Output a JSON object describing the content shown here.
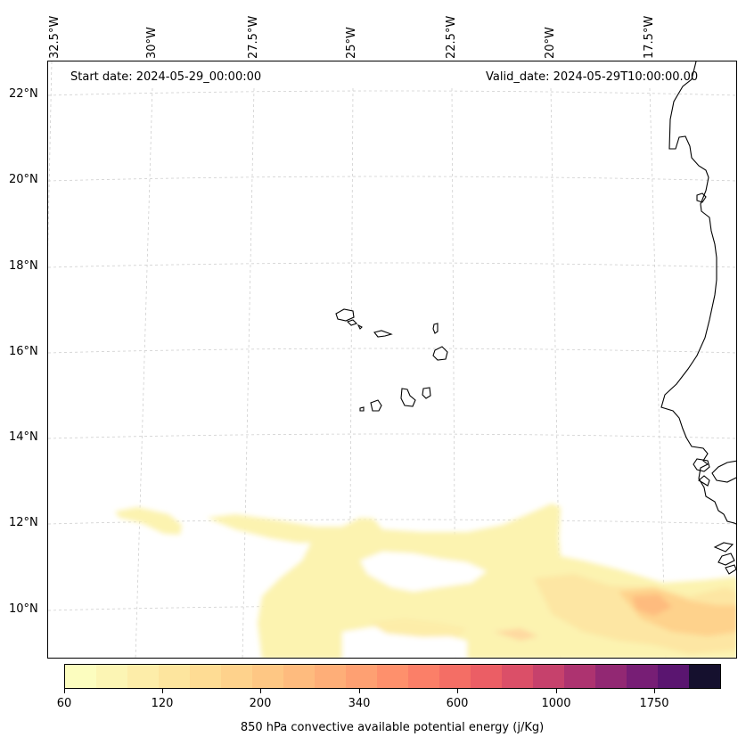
{
  "map": {
    "annotations": {
      "start_date": "Start date: 2024-05-29_00:00:00",
      "valid_date": "Valid_date: 2024-05-29T10:00:00.00"
    },
    "longitude_labels": [
      "32.5°W",
      "30°W",
      "27.5°W",
      "25°W",
      "22.5°W",
      "20°W",
      "17.5°W"
    ],
    "latitude_labels": [
      "22°N",
      "20°N",
      "18°N",
      "16°N",
      "14°N",
      "12°N",
      "10°N"
    ],
    "grid": "dashed gray",
    "coastline_color": "#000000"
  },
  "colorbar": {
    "title": "850 hPa convective available potential energy (j/Kg)",
    "tick_labels": [
      "60",
      "120",
      "200",
      "340",
      "600",
      "1000",
      "1750"
    ],
    "colors": [
      "#fcfdbf",
      "#fcf5b4",
      "#fdeda9",
      "#fde59e",
      "#fedc94",
      "#fed28c",
      "#fec784",
      "#febb7e",
      "#feae78",
      "#fea072",
      "#fe906c",
      "#fb7f68",
      "#f46e65",
      "#eb5e65",
      "#db4f68",
      "#c6416c",
      "#ad3370",
      "#922873",
      "#771e75",
      "#5a1570",
      "#15102e"
    ]
  },
  "chart_data": {
    "type": "heatmap",
    "title": "",
    "xlabel": "",
    "ylabel": "",
    "x_ticks": [
      "32.5°W",
      "30°W",
      "27.5°W",
      "25°W",
      "22.5°W",
      "20°W",
      "17.5°W"
    ],
    "y_ticks": [
      "22°N",
      "20°N",
      "18°N",
      "16°N",
      "14°N",
      "12°N",
      "10°N"
    ],
    "colorbar_ticks": [
      60,
      120,
      200,
      340,
      600,
      1000,
      1750
    ],
    "grid": true
  }
}
